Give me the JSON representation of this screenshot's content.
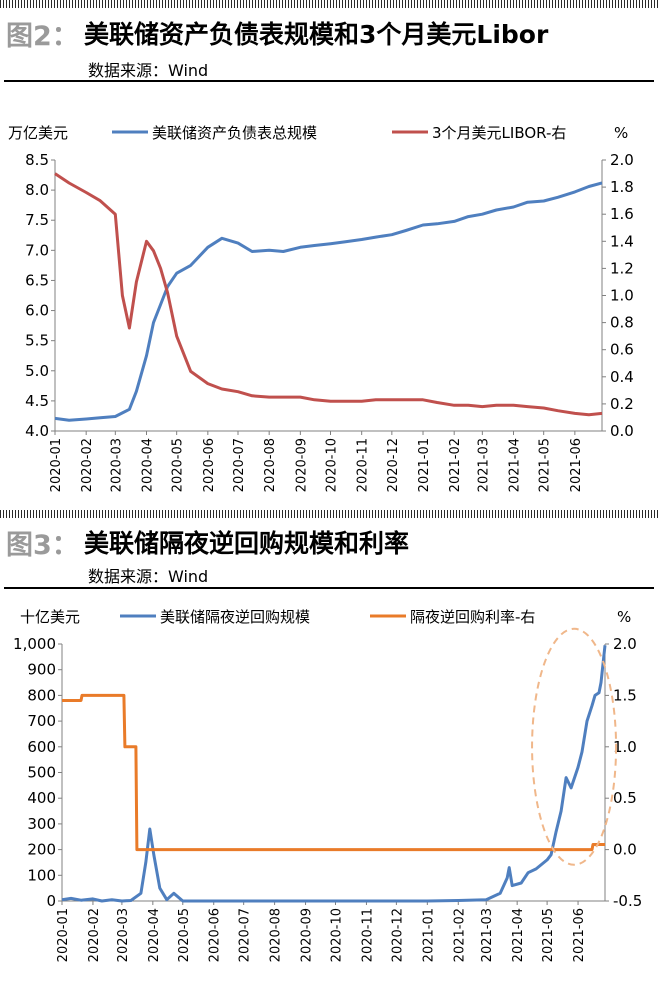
{
  "figures": [
    {
      "label": "图2：",
      "title": "美联储资产负债表规模和3个月美元Libor",
      "source": "数据来源：Wind"
    },
    {
      "label": "图3：",
      "title": "美联储隔夜逆回购规模和利率",
      "source": "数据来源：Wind"
    }
  ],
  "annotation_color": "#F0B78A",
  "chart_data": [
    {
      "type": "line",
      "x_ticks": [
        "2020-01",
        "2020-02",
        "2020-03",
        "2020-04",
        "2020-05",
        "2020-06",
        "2020-07",
        "2020-08",
        "2020-09",
        "2020-10",
        "2020-11",
        "2020-12",
        "2021-01",
        "2021-02",
        "2021-03",
        "2021-04",
        "2021-05",
        "2021-06"
      ],
      "xlim": [
        "2020-01",
        "2021-06-28"
      ],
      "ylabel_left": "万亿美元",
      "ylabel_right": "%",
      "ylim_left": [
        4.0,
        8.5
      ],
      "ylim_right": [
        0.0,
        2.0
      ],
      "yticks_left": [
        "4.0",
        "4.5",
        "5.0",
        "5.5",
        "6.0",
        "6.5",
        "7.0",
        "7.5",
        "8.0",
        "8.5"
      ],
      "yticks_right": [
        "0.0",
        "0.2",
        "0.4",
        "0.6",
        "0.8",
        "1.0",
        "1.2",
        "1.4",
        "1.6",
        "1.8",
        "2.0"
      ],
      "grid": false,
      "legend_position": "top",
      "series": [
        {
          "name": "美联储资产负债表总规模",
          "axis": "left",
          "color": "#4F7FBF",
          "points": [
            [
              "2020-01-01",
              4.21
            ],
            [
              "2020-01-15",
              4.18
            ],
            [
              "2020-02-01",
              4.2
            ],
            [
              "2020-02-15",
              4.22
            ],
            [
              "2020-03-01",
              4.24
            ],
            [
              "2020-03-08",
              4.3
            ],
            [
              "2020-03-15",
              4.36
            ],
            [
              "2020-03-22",
              4.66
            ],
            [
              "2020-04-01",
              5.25
            ],
            [
              "2020-04-08",
              5.8
            ],
            [
              "2020-04-15",
              6.1
            ],
            [
              "2020-04-22",
              6.4
            ],
            [
              "2020-05-01",
              6.62
            ],
            [
              "2020-05-15",
              6.75
            ],
            [
              "2020-06-01",
              7.05
            ],
            [
              "2020-06-15",
              7.2
            ],
            [
              "2020-07-01",
              7.12
            ],
            [
              "2020-07-15",
              6.98
            ],
            [
              "2020-08-01",
              7.0
            ],
            [
              "2020-08-15",
              6.98
            ],
            [
              "2020-09-01",
              7.05
            ],
            [
              "2020-09-15",
              7.08
            ],
            [
              "2020-10-01",
              7.11
            ],
            [
              "2020-10-15",
              7.14
            ],
            [
              "2020-11-01",
              7.18
            ],
            [
              "2020-11-15",
              7.22
            ],
            [
              "2020-12-01",
              7.26
            ],
            [
              "2020-12-15",
              7.33
            ],
            [
              "2021-01-01",
              7.42
            ],
            [
              "2021-01-15",
              7.44
            ],
            [
              "2021-02-01",
              7.48
            ],
            [
              "2021-02-15",
              7.56
            ],
            [
              "2021-03-01",
              7.6
            ],
            [
              "2021-03-15",
              7.67
            ],
            [
              "2021-04-01",
              7.72
            ],
            [
              "2021-04-15",
              7.8
            ],
            [
              "2021-05-01",
              7.82
            ],
            [
              "2021-05-15",
              7.88
            ],
            [
              "2021-06-01",
              7.97
            ],
            [
              "2021-06-15",
              8.06
            ],
            [
              "2021-06-28",
              8.12
            ]
          ]
        },
        {
          "name": "3个月美元LIBOR-右",
          "axis": "right",
          "color": "#C0504D",
          "points": [
            [
              "2020-01-01",
              1.9
            ],
            [
              "2020-01-15",
              1.83
            ],
            [
              "2020-02-01",
              1.76
            ],
            [
              "2020-02-15",
              1.7
            ],
            [
              "2020-03-01",
              1.6
            ],
            [
              "2020-03-08",
              1.0
            ],
            [
              "2020-03-15",
              0.76
            ],
            [
              "2020-03-22",
              1.1
            ],
            [
              "2020-04-01",
              1.4
            ],
            [
              "2020-04-08",
              1.33
            ],
            [
              "2020-04-15",
              1.2
            ],
            [
              "2020-04-22",
              1.02
            ],
            [
              "2020-05-01",
              0.7
            ],
            [
              "2020-05-15",
              0.44
            ],
            [
              "2020-06-01",
              0.35
            ],
            [
              "2020-06-15",
              0.31
            ],
            [
              "2020-07-01",
              0.29
            ],
            [
              "2020-07-15",
              0.26
            ],
            [
              "2020-08-01",
              0.25
            ],
            [
              "2020-08-15",
              0.25
            ],
            [
              "2020-09-01",
              0.25
            ],
            [
              "2020-09-15",
              0.23
            ],
            [
              "2020-10-01",
              0.22
            ],
            [
              "2020-10-15",
              0.22
            ],
            [
              "2020-11-01",
              0.22
            ],
            [
              "2020-11-15",
              0.23
            ],
            [
              "2020-12-01",
              0.23
            ],
            [
              "2020-12-15",
              0.23
            ],
            [
              "2021-01-01",
              0.23
            ],
            [
              "2021-01-15",
              0.21
            ],
            [
              "2021-02-01",
              0.19
            ],
            [
              "2021-02-15",
              0.19
            ],
            [
              "2021-03-01",
              0.18
            ],
            [
              "2021-03-15",
              0.19
            ],
            [
              "2021-04-01",
              0.19
            ],
            [
              "2021-04-15",
              0.18
            ],
            [
              "2021-05-01",
              0.17
            ],
            [
              "2021-05-15",
              0.15
            ],
            [
              "2021-06-01",
              0.13
            ],
            [
              "2021-06-15",
              0.12
            ],
            [
              "2021-06-28",
              0.13
            ]
          ]
        }
      ]
    },
    {
      "type": "line",
      "x_ticks": [
        "2020-01",
        "2020-02",
        "2020-03",
        "2020-04",
        "2020-05",
        "2020-06",
        "2020-07",
        "2020-08",
        "2020-09",
        "2020-10",
        "2020-11",
        "2020-12",
        "2021-01",
        "2021-02",
        "2021-03",
        "2021-04",
        "2021-05",
        "2021-06"
      ],
      "xlim": [
        "2020-01",
        "2021-06-28"
      ],
      "ylabel_left": "十亿美元",
      "ylabel_right": "%",
      "ylim_left": [
        0,
        1000
      ],
      "ylim_right": [
        -0.5,
        2.0
      ],
      "yticks_left": [
        "0",
        "100",
        "200",
        "300",
        "400",
        "500",
        "600",
        "700",
        "800",
        "900",
        "1,000"
      ],
      "yticks_right": [
        "-0.5",
        "0.0",
        "0.5",
        "1.0",
        "1.5",
        "2.0"
      ],
      "grid": false,
      "legend_position": "top",
      "series": [
        {
          "name": "美联储隔夜逆回购规模",
          "axis": "left",
          "color": "#4F7FBF",
          "points": [
            [
              "2020-01-01",
              5
            ],
            [
              "2020-01-10",
              10
            ],
            [
              "2020-01-20",
              3
            ],
            [
              "2020-02-01",
              8
            ],
            [
              "2020-02-10",
              0
            ],
            [
              "2020-02-20",
              5
            ],
            [
              "2020-03-01",
              0
            ],
            [
              "2020-03-10",
              2
            ],
            [
              "2020-03-20",
              30
            ],
            [
              "2020-03-25",
              150
            ],
            [
              "2020-03-29",
              280
            ],
            [
              "2020-04-02",
              180
            ],
            [
              "2020-04-08",
              50
            ],
            [
              "2020-04-15",
              5
            ],
            [
              "2020-04-22",
              30
            ],
            [
              "2020-05-01",
              0
            ],
            [
              "2020-06-01",
              0
            ],
            [
              "2020-07-01",
              0
            ],
            [
              "2020-08-01",
              0
            ],
            [
              "2020-09-01",
              0
            ],
            [
              "2020-10-01",
              0
            ],
            [
              "2020-11-01",
              0
            ],
            [
              "2020-12-01",
              0
            ],
            [
              "2021-01-01",
              0
            ],
            [
              "2021-02-01",
              2
            ],
            [
              "2021-03-01",
              5
            ],
            [
              "2021-03-15",
              30
            ],
            [
              "2021-03-22",
              90
            ],
            [
              "2021-03-24",
              130
            ],
            [
              "2021-03-27",
              60
            ],
            [
              "2021-04-05",
              70
            ],
            [
              "2021-04-12",
              110
            ],
            [
              "2021-04-20",
              125
            ],
            [
              "2021-05-01",
              160
            ],
            [
              "2021-05-05",
              180
            ],
            [
              "2021-05-10",
              270
            ],
            [
              "2021-05-15",
              350
            ],
            [
              "2021-05-20",
              480
            ],
            [
              "2021-05-25",
              440
            ],
            [
              "2021-06-01",
              520
            ],
            [
              "2021-06-05",
              580
            ],
            [
              "2021-06-10",
              700
            ],
            [
              "2021-06-15",
              760
            ],
            [
              "2021-06-18",
              800
            ],
            [
              "2021-06-22",
              810
            ],
            [
              "2021-06-24",
              850
            ],
            [
              "2021-06-28",
              995
            ]
          ]
        },
        {
          "name": "隔夜逆回购利率-右",
          "axis": "right",
          "color": "#E97B29",
          "points": [
            [
              "2020-01-01",
              1.45
            ],
            [
              "2020-01-20",
              1.45
            ],
            [
              "2020-01-21",
              1.5
            ],
            [
              "2020-03-03",
              1.5
            ],
            [
              "2020-03-04",
              1.0
            ],
            [
              "2020-03-15",
              1.0
            ],
            [
              "2020-03-16",
              0.0
            ],
            [
              "2021-06-15",
              0.0
            ],
            [
              "2021-06-16",
              0.05
            ],
            [
              "2021-06-28",
              0.05
            ]
          ]
        }
      ]
    }
  ]
}
